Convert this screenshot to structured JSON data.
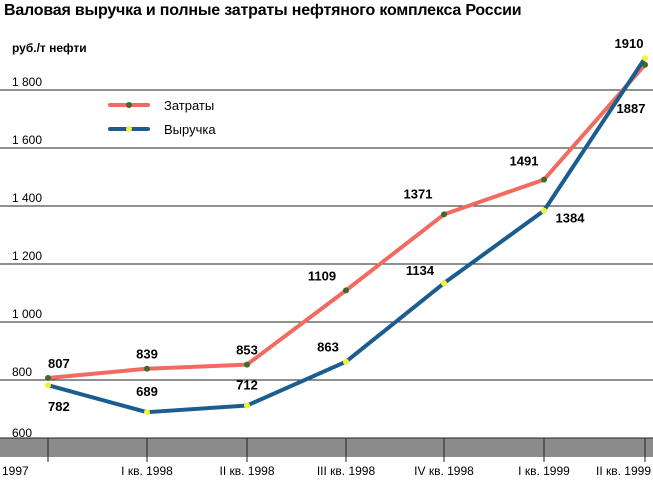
{
  "chart_data": {
    "type": "line",
    "title": "Валовая выручка и полные затраты нефтяного комплекса России",
    "ylabel": "руб./т нефти",
    "xlabel": "",
    "categories": [
      "1997",
      "I кв. 1998",
      "II кв. 1998",
      "III кв. 1998",
      "IV кв. 1998",
      "I кв. 1999",
      "II кв. 1999"
    ],
    "ylim": [
      600,
      1950
    ],
    "yticks": [
      {
        "value": 600,
        "label": "600"
      },
      {
        "value": 800,
        "label": "800"
      },
      {
        "value": 1000,
        "label": "1 000"
      },
      {
        "value": 1200,
        "label": "1 200"
      },
      {
        "value": 1400,
        "label": "1 400"
      },
      {
        "value": 1600,
        "label": "1 600"
      },
      {
        "value": 1800,
        "label": "1 800"
      }
    ],
    "grid": "horizontal",
    "legend_position": "upper-left",
    "series": [
      {
        "name": "Затраты",
        "color": "#f26b63",
        "marker_color": "#3d6b2a",
        "values": [
          807,
          839,
          853,
          1109,
          1371,
          1491,
          1887
        ],
        "labels": [
          "807",
          "839",
          "853",
          "1109",
          "1371",
          "1491",
          "1887"
        ]
      },
      {
        "name": "Выручка",
        "color": "#1b5d8f",
        "marker_color": "#f5f03a",
        "values": [
          782,
          689,
          712,
          863,
          1134,
          1384,
          1910
        ],
        "labels": [
          "782",
          "689",
          "712",
          "863",
          "1134",
          "1384",
          "1910"
        ]
      }
    ]
  }
}
